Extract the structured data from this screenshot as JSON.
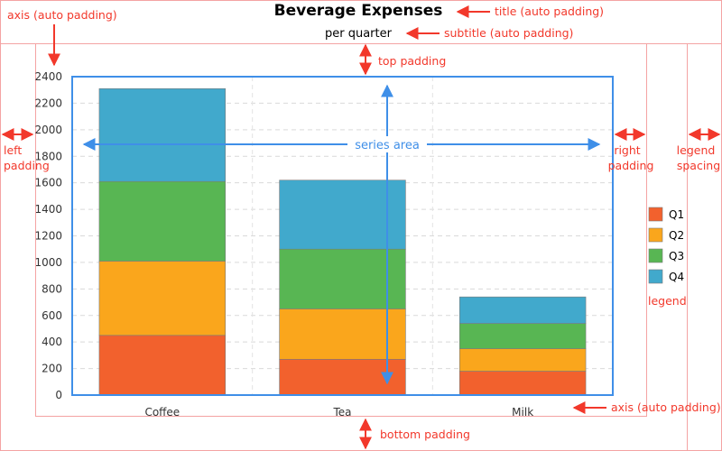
{
  "chart_data": {
    "type": "bar",
    "stacked": true,
    "title": "Beverage Expenses",
    "subtitle": "per quarter",
    "categories": [
      "Coffee",
      "Tea",
      "Milk"
    ],
    "series": [
      {
        "name": "Q1",
        "color": "#f2612d",
        "values": [
          450,
          270,
          180
        ]
      },
      {
        "name": "Q2",
        "color": "#faa61c",
        "values": [
          560,
          380,
          170
        ]
      },
      {
        "name": "Q3",
        "color": "#58b653",
        "values": [
          600,
          450,
          190
        ]
      },
      {
        "name": "Q4",
        "color": "#41a9cc",
        "values": [
          700,
          520,
          200
        ]
      }
    ],
    "y_ticks": [
      "0",
      "200",
      "400",
      "600",
      "800",
      "1000",
      "1200",
      "1400",
      "1600",
      "1800",
      "2000",
      "2200",
      "2400"
    ],
    "ylim": [
      0,
      2400
    ],
    "grid": true,
    "legend_position": "right"
  },
  "annotations": {
    "axis_top": "axis (auto padding)",
    "title_note": "title (auto padding)",
    "subtitle_note": "subtitle (auto padding)",
    "top_padding": "top padding",
    "left_padding": "left padding",
    "series_area": "series area",
    "right_padding": "right padding",
    "legend_spacing": "legend spacing",
    "legend": "legend",
    "axis_bottom": "axis (auto padding)",
    "bottom_padding": "bottom padding"
  },
  "colors": {
    "annotation": "#f2382b",
    "series_area_border": "#3f8fe8",
    "guide_lines": "#f4a3a3"
  }
}
